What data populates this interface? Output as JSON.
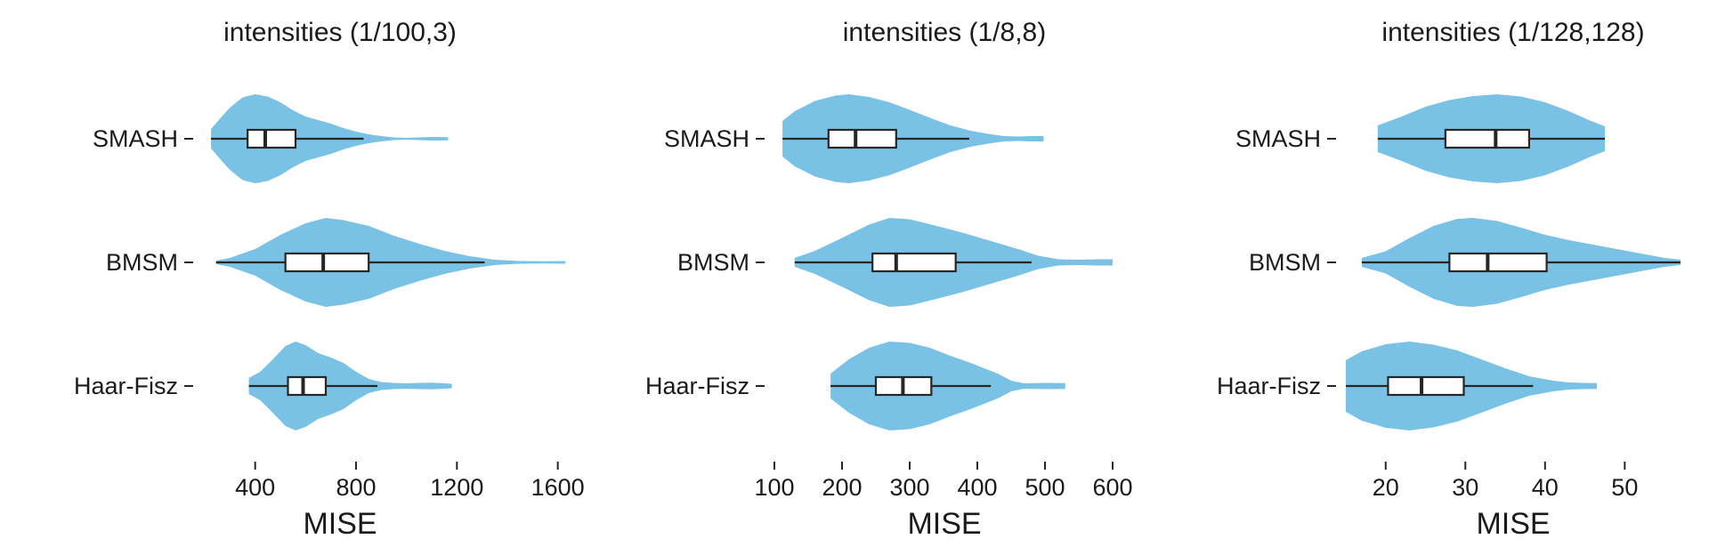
{
  "chart_data": [
    {
      "type": "violin",
      "title": "intensities (1/100,3)",
      "xlabel": "MISE",
      "xlim": [
        200,
        1700
      ],
      "xticks": [
        400,
        800,
        1200,
        1600
      ],
      "xtick_labels": [
        "400",
        "800",
        "1200",
        "1600"
      ],
      "color": "#79C2E6",
      "categories": [
        "SMASH",
        "BMSM",
        "Haar-Fisz"
      ],
      "series": [
        {
          "category": "SMASH",
          "min": 225,
          "q1": 370,
          "median": 440,
          "q3": 560,
          "whisker_high": 830,
          "max": 1165,
          "density": [
            [
              225,
              0.22
            ],
            [
              260,
              0.45
            ],
            [
              300,
              0.7
            ],
            [
              350,
              0.93
            ],
            [
              400,
              1.0
            ],
            [
              450,
              0.95
            ],
            [
              500,
              0.82
            ],
            [
              550,
              0.64
            ],
            [
              600,
              0.5
            ],
            [
              650,
              0.42
            ],
            [
              700,
              0.34
            ],
            [
              750,
              0.24
            ],
            [
              800,
              0.16
            ],
            [
              850,
              0.1
            ],
            [
              900,
              0.06
            ],
            [
              950,
              0.03
            ],
            [
              1000,
              0.02
            ],
            [
              1050,
              0.03
            ],
            [
              1100,
              0.04
            ],
            [
              1130,
              0.04
            ],
            [
              1165,
              0.035
            ]
          ]
        },
        {
          "category": "BMSM",
          "min": 245,
          "q1": 520,
          "median": 670,
          "q3": 850,
          "whisker_high": 1310,
          "max": 1630,
          "density": [
            [
              245,
              0.04
            ],
            [
              300,
              0.1
            ],
            [
              400,
              0.3
            ],
            [
              500,
              0.62
            ],
            [
              600,
              0.88
            ],
            [
              680,
              1.0
            ],
            [
              750,
              0.95
            ],
            [
              850,
              0.82
            ],
            [
              950,
              0.6
            ],
            [
              1050,
              0.42
            ],
            [
              1150,
              0.26
            ],
            [
              1250,
              0.14
            ],
            [
              1350,
              0.06
            ],
            [
              1450,
              0.03
            ],
            [
              1550,
              0.025
            ],
            [
              1630,
              0.03
            ]
          ]
        },
        {
          "category": "Haar-Fisz",
          "min": 375,
          "q1": 530,
          "median": 590,
          "q3": 680,
          "whisker_high": 885,
          "max": 1180,
          "density": [
            [
              375,
              0.18
            ],
            [
              420,
              0.32
            ],
            [
              470,
              0.6
            ],
            [
              520,
              0.9
            ],
            [
              560,
              1.0
            ],
            [
              600,
              0.92
            ],
            [
              650,
              0.74
            ],
            [
              700,
              0.64
            ],
            [
              750,
              0.52
            ],
            [
              800,
              0.32
            ],
            [
              850,
              0.16
            ],
            [
              900,
              0.09
            ],
            [
              950,
              0.07
            ],
            [
              1000,
              0.06
            ],
            [
              1050,
              0.07
            ],
            [
              1100,
              0.075
            ],
            [
              1150,
              0.06
            ],
            [
              1180,
              0.05
            ]
          ]
        }
      ]
    },
    {
      "type": "violin",
      "title": "intensities (1/8,8)",
      "xlabel": "MISE",
      "xlim": [
        100,
        600
      ],
      "xticks": [
        100,
        200,
        300,
        400,
        500,
        600
      ],
      "xtick_labels": [
        "100",
        "200",
        "300",
        "400",
        "500",
        "600"
      ],
      "color": "#79C2E6",
      "categories": [
        "SMASH",
        "BMSM",
        "Haar-Fisz"
      ],
      "series": [
        {
          "category": "SMASH",
          "min": 112,
          "q1": 180,
          "median": 220,
          "q3": 280,
          "whisker_high": 388,
          "max": 498,
          "density": [
            [
              112,
              0.4
            ],
            [
              130,
              0.62
            ],
            [
              160,
              0.85
            ],
            [
              190,
              0.97
            ],
            [
              210,
              1.0
            ],
            [
              240,
              0.94
            ],
            [
              270,
              0.82
            ],
            [
              300,
              0.65
            ],
            [
              330,
              0.47
            ],
            [
              360,
              0.3
            ],
            [
              390,
              0.18
            ],
            [
              420,
              0.1
            ],
            [
              440,
              0.06
            ],
            [
              460,
              0.05
            ],
            [
              480,
              0.06
            ],
            [
              498,
              0.06
            ]
          ]
        },
        {
          "category": "BMSM",
          "min": 130,
          "q1": 245,
          "median": 280,
          "q3": 368,
          "whisker_high": 480,
          "max": 600,
          "density": [
            [
              130,
              0.1
            ],
            [
              160,
              0.26
            ],
            [
              200,
              0.55
            ],
            [
              240,
              0.85
            ],
            [
              270,
              1.0
            ],
            [
              300,
              0.97
            ],
            [
              340,
              0.82
            ],
            [
              380,
              0.66
            ],
            [
              420,
              0.48
            ],
            [
              460,
              0.3
            ],
            [
              490,
              0.15
            ],
            [
              520,
              0.07
            ],
            [
              550,
              0.06
            ],
            [
              575,
              0.07
            ],
            [
              600,
              0.07
            ]
          ]
        },
        {
          "category": "Haar-Fisz",
          "min": 183,
          "q1": 250,
          "median": 290,
          "q3": 332,
          "whisker_high": 420,
          "max": 530,
          "density": [
            [
              183,
              0.28
            ],
            [
              210,
              0.6
            ],
            [
              240,
              0.86
            ],
            [
              270,
              1.0
            ],
            [
              300,
              0.97
            ],
            [
              330,
              0.86
            ],
            [
              360,
              0.68
            ],
            [
              390,
              0.52
            ],
            [
              410,
              0.4
            ],
            [
              430,
              0.28
            ],
            [
              450,
              0.12
            ],
            [
              470,
              0.06
            ],
            [
              500,
              0.07
            ],
            [
              530,
              0.065
            ]
          ]
        }
      ]
    },
    {
      "type": "violin",
      "title": "intensities (1/128,128)",
      "xlabel": "MISE",
      "xlim": [
        15,
        57
      ],
      "xticks": [
        20,
        30,
        40,
        50
      ],
      "xtick_labels": [
        "20",
        "30",
        "40",
        "50"
      ],
      "color": "#79C2E6",
      "categories": [
        "SMASH",
        "BMSM",
        "Haar-Fisz"
      ],
      "series": [
        {
          "category": "SMASH",
          "min": 19,
          "q1": 27.5,
          "median": 33.8,
          "q3": 38,
          "whisker_high": 47.5,
          "max": 47.5,
          "density": [
            [
              19,
              0.3
            ],
            [
              22,
              0.5
            ],
            [
              25,
              0.72
            ],
            [
              28,
              0.87
            ],
            [
              31,
              0.96
            ],
            [
              34,
              1.0
            ],
            [
              37,
              0.95
            ],
            [
              40,
              0.82
            ],
            [
              43,
              0.62
            ],
            [
              45.5,
              0.42
            ],
            [
              47.5,
              0.28
            ]
          ]
        },
        {
          "category": "BMSM",
          "min": 17,
          "q1": 28,
          "median": 32.8,
          "q3": 40.2,
          "whisker_high": 57,
          "max": 57,
          "density": [
            [
              17,
              0.1
            ],
            [
              20,
              0.25
            ],
            [
              23,
              0.55
            ],
            [
              26,
              0.82
            ],
            [
              29,
              0.98
            ],
            [
              31,
              1.0
            ],
            [
              34,
              0.93
            ],
            [
              37,
              0.78
            ],
            [
              40,
              0.62
            ],
            [
              43,
              0.5
            ],
            [
              46,
              0.4
            ],
            [
              49,
              0.3
            ],
            [
              52,
              0.2
            ],
            [
              55,
              0.1
            ],
            [
              57,
              0.06
            ]
          ]
        },
        {
          "category": "Haar-Fisz",
          "min": 15,
          "q1": 20.3,
          "median": 24.5,
          "q3": 29.8,
          "whisker_high": 38.5,
          "max": 46.5,
          "density": [
            [
              15,
              0.58
            ],
            [
              17,
              0.78
            ],
            [
              20,
              0.94
            ],
            [
              23,
              1.0
            ],
            [
              26,
              0.93
            ],
            [
              29,
              0.8
            ],
            [
              32,
              0.6
            ],
            [
              35,
              0.4
            ],
            [
              38,
              0.22
            ],
            [
              41,
              0.12
            ],
            [
              43,
              0.08
            ],
            [
              45,
              0.07
            ],
            [
              46.5,
              0.065
            ]
          ]
        }
      ]
    }
  ]
}
